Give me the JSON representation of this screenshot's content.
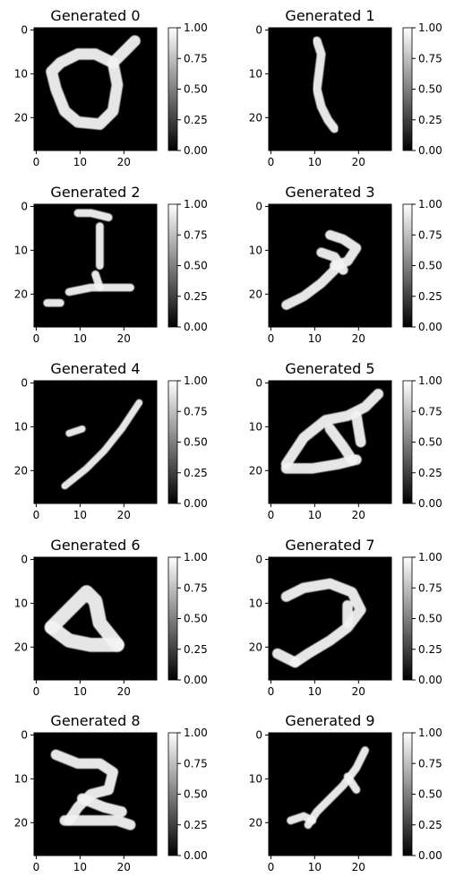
{
  "chart_data": [
    {
      "type": "heatmap",
      "title": "Generated 0",
      "colormap": "gray",
      "xlim": [
        0,
        28
      ],
      "ylim": [
        28,
        0
      ],
      "xticks": [
        "0",
        "10",
        "20"
      ],
      "yticks": [
        "0",
        "10",
        "20"
      ],
      "colorbar": {
        "range": [
          0,
          1
        ],
        "ticks": [
          "0.00",
          "0.25",
          "0.50",
          "0.75",
          "1.00"
        ]
      },
      "strokes": [
        [
          [
            18,
            8
          ],
          [
            14,
            6
          ],
          [
            10,
            6
          ],
          [
            6,
            8
          ],
          [
            4,
            10
          ],
          [
            5,
            14
          ],
          [
            7,
            19
          ],
          [
            10,
            21.5
          ],
          [
            15,
            22
          ],
          [
            18,
            19
          ],
          [
            19,
            13
          ],
          [
            18,
            8
          ]
        ],
        [
          [
            18,
            8
          ],
          [
            21,
            5
          ],
          [
            23,
            3
          ]
        ]
      ],
      "stroke_width": 2.6
    },
    {
      "type": "heatmap",
      "title": "Generated 1",
      "colormap": "gray",
      "xlim": [
        0,
        28
      ],
      "ylim": [
        28,
        0
      ],
      "xticks": [
        "0",
        "10",
        "20"
      ],
      "yticks": [
        "0",
        "10",
        "20"
      ],
      "colorbar": {
        "range": [
          0,
          1
        ],
        "ticks": [
          "0.00",
          "0.25",
          "0.50",
          "0.75",
          "1.00"
        ]
      },
      "strokes": [
        [
          [
            11,
            3
          ],
          [
            12,
            6
          ],
          [
            11.5,
            10
          ],
          [
            11,
            14
          ],
          [
            12,
            18
          ],
          [
            13.5,
            21
          ],
          [
            15,
            23
          ]
        ]
      ],
      "stroke_width": 2.0
    },
    {
      "type": "heatmap",
      "title": "Generated 2",
      "colormap": "gray",
      "xlim": [
        0,
        28
      ],
      "ylim": [
        28,
        0
      ],
      "xticks": [
        "0",
        "10",
        "20"
      ],
      "yticks": [
        "0",
        "10",
        "20"
      ],
      "colorbar": {
        "range": [
          0,
          1
        ],
        "ticks": [
          "0.00",
          "0.25",
          "0.50",
          "0.75",
          "1.00"
        ]
      },
      "strokes": [
        [
          [
            10,
            2
          ],
          [
            13,
            2
          ],
          [
            17,
            3
          ]
        ],
        [
          [
            15,
            5
          ],
          [
            15,
            14
          ]
        ],
        [
          [
            8,
            20
          ],
          [
            13,
            19
          ],
          [
            18,
            19
          ],
          [
            22,
            19
          ]
        ],
        [
          [
            3,
            22.5
          ],
          [
            6,
            22.5
          ]
        ],
        [
          [
            14,
            16
          ],
          [
            15,
            19
          ]
        ]
      ],
      "stroke_width": 1.8
    },
    {
      "type": "heatmap",
      "title": "Generated 3",
      "colormap": "gray",
      "xlim": [
        0,
        28
      ],
      "ylim": [
        28,
        0
      ],
      "xticks": [
        "0",
        "10",
        "20"
      ],
      "yticks": [
        "0",
        "10",
        "20"
      ],
      "colorbar": {
        "range": [
          0,
          1
        ],
        "ticks": [
          "0.00",
          "0.25",
          "0.50",
          "0.75",
          "1.00"
        ]
      },
      "strokes": [
        [
          [
            14,
            7
          ],
          [
            17,
            8
          ],
          [
            20,
            10
          ],
          [
            18,
            13
          ],
          [
            15,
            14
          ]
        ],
        [
          [
            12,
            11
          ],
          [
            15,
            12
          ],
          [
            17,
            15
          ]
        ],
        [
          [
            16,
            14
          ],
          [
            12,
            18
          ],
          [
            8,
            21
          ],
          [
            4,
            23
          ]
        ]
      ],
      "stroke_width": 2.2
    },
    {
      "type": "heatmap",
      "title": "Generated 4",
      "colormap": "gray",
      "xlim": [
        0,
        28
      ],
      "ylim": [
        28,
        0
      ],
      "xticks": [
        "0",
        "10",
        "20"
      ],
      "yticks": [
        "0",
        "10",
        "20"
      ],
      "colorbar": {
        "range": [
          0,
          1
        ],
        "ticks": [
          "0.00",
          "0.25",
          "0.50",
          "0.75",
          "1.00"
        ]
      },
      "strokes": [
        [
          [
            24,
            5
          ],
          [
            20,
            11
          ],
          [
            16,
            16
          ],
          [
            12,
            20
          ],
          [
            7,
            24
          ]
        ],
        [
          [
            8,
            12
          ],
          [
            11,
            11
          ]
        ]
      ],
      "stroke_width": 1.6
    },
    {
      "type": "heatmap",
      "title": "Generated 5",
      "colormap": "gray",
      "xlim": [
        0,
        28
      ],
      "ylim": [
        28,
        0
      ],
      "xticks": [
        "0",
        "10",
        "20"
      ],
      "yticks": [
        "0",
        "10",
        "20"
      ],
      "colorbar": {
        "range": [
          0,
          1
        ],
        "ticks": [
          "0.00",
          "0.25",
          "0.50",
          "0.75",
          "1.00"
        ]
      },
      "strokes": [
        [
          [
            4,
            19
          ],
          [
            8,
            13
          ],
          [
            13,
            9
          ],
          [
            18,
            8
          ],
          [
            22,
            6
          ],
          [
            25,
            3
          ]
        ],
        [
          [
            4,
            20
          ],
          [
            10,
            20
          ],
          [
            16,
            19
          ],
          [
            20,
            18
          ]
        ],
        [
          [
            14,
            11
          ],
          [
            17,
            15
          ],
          [
            19,
            18
          ]
        ],
        [
          [
            20,
            8
          ],
          [
            21,
            14
          ]
        ]
      ],
      "stroke_width": 2.4
    },
    {
      "type": "heatmap",
      "title": "Generated 6",
      "colormap": "gray",
      "xlim": [
        0,
        28
      ],
      "ylim": [
        28,
        0
      ],
      "xticks": [
        "0",
        "10",
        "20"
      ],
      "yticks": [
        "0",
        "10",
        "20"
      ],
      "colorbar": {
        "range": [
          0,
          1
        ],
        "ticks": [
          "0.00",
          "0.25",
          "0.50",
          "0.75",
          "1.00"
        ]
      },
      "strokes": [
        [
          [
            4,
            16
          ],
          [
            8,
            12
          ],
          [
            12,
            8
          ],
          [
            14,
            10
          ],
          [
            15,
            15
          ],
          [
            19,
            20
          ]
        ],
        [
          [
            4,
            16
          ],
          [
            8,
            19
          ],
          [
            13,
            20
          ],
          [
            19,
            20
          ]
        ]
      ],
      "stroke_width": 3.2
    },
    {
      "type": "heatmap",
      "title": "Generated 7",
      "colormap": "gray",
      "xlim": [
        0,
        28
      ],
      "ylim": [
        28,
        0
      ],
      "xticks": [
        "0",
        "10",
        "20"
      ],
      "yticks": [
        "0",
        "10",
        "20"
      ],
      "colorbar": {
        "range": [
          0,
          1
        ],
        "ticks": [
          "0.00",
          "0.25",
          "0.50",
          "0.75",
          "1.00"
        ]
      },
      "strokes": [
        [
          [
            4,
            9
          ],
          [
            8,
            7
          ],
          [
            14,
            6
          ],
          [
            19,
            8
          ],
          [
            21,
            12
          ],
          [
            18,
            16
          ],
          [
            14,
            19
          ],
          [
            9,
            22
          ],
          [
            6,
            24
          ]
        ],
        [
          [
            2,
            22
          ],
          [
            6,
            24
          ]
        ],
        [
          [
            18,
            11
          ],
          [
            18,
            15
          ]
        ]
      ],
      "stroke_width": 2.4
    },
    {
      "type": "heatmap",
      "title": "Generated 8",
      "colormap": "gray",
      "xlim": [
        0,
        28
      ],
      "ylim": [
        28,
        0
      ],
      "xticks": [
        "0",
        "10",
        "20"
      ],
      "yticks": [
        "0",
        "10",
        "20"
      ],
      "colorbar": {
        "range": [
          0,
          1
        ],
        "ticks": [
          "0.00",
          "0.25",
          "0.50",
          "0.75",
          "1.00"
        ]
      },
      "strokes": [
        [
          [
            5,
            5
          ],
          [
            10,
            7
          ],
          [
            15,
            7
          ],
          [
            18,
            9
          ],
          [
            17,
            13
          ],
          [
            13,
            14
          ],
          [
            10,
            17
          ],
          [
            8,
            20
          ]
        ],
        [
          [
            7,
            20
          ],
          [
            13,
            20
          ],
          [
            19,
            20
          ],
          [
            22,
            21
          ]
        ],
        [
          [
            11,
            15
          ],
          [
            16,
            17
          ],
          [
            20,
            18
          ]
        ]
      ],
      "stroke_width": 2.4
    },
    {
      "type": "heatmap",
      "title": "Generated 9",
      "colormap": "gray",
      "xlim": [
        0,
        28
      ],
      "ylim": [
        28,
        0
      ],
      "xticks": [
        "0",
        "10",
        "20"
      ],
      "yticks": [
        "0",
        "10",
        "20"
      ],
      "colorbar": {
        "range": [
          0,
          1
        ],
        "ticks": [
          "0.00",
          "0.25",
          "0.50",
          "0.75",
          "1.00"
        ]
      },
      "strokes": [
        [
          [
            22,
            4
          ],
          [
            20,
            8
          ],
          [
            17,
            12
          ],
          [
            14,
            15
          ],
          [
            11,
            18
          ],
          [
            9,
            21
          ]
        ],
        [
          [
            5,
            20
          ],
          [
            8,
            19
          ],
          [
            10,
            20
          ]
        ],
        [
          [
            18,
            10
          ],
          [
            20,
            13
          ]
        ]
      ],
      "stroke_width": 1.8
    }
  ]
}
